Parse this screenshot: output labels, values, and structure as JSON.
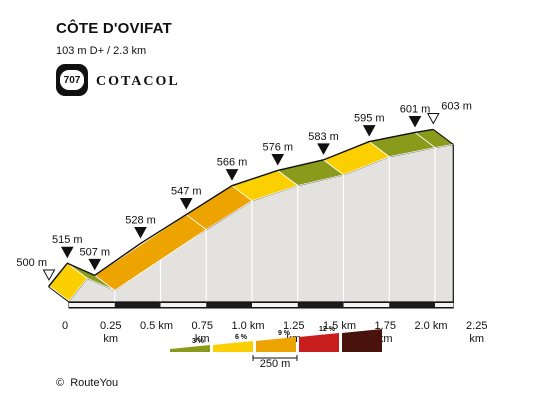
{
  "title": "CÔTE D'OVIFAT",
  "subtitle": "103 m D+ / 2.3 km",
  "logo": {
    "number": "707",
    "word": "COTACOL"
  },
  "copyright": "RouteYou",
  "copyright_symbol": "©",
  "chart_data": {
    "type": "area",
    "title": "CÔTE D'OVIFAT",
    "subtitle": "103 m D+ / 2.3 km",
    "x_unit": "km",
    "x_range": [
      0,
      2.3
    ],
    "grid": false,
    "points": [
      {
        "km": 0.0,
        "elev": 500,
        "label": "500 m",
        "marker": "open"
      },
      {
        "km": 0.1,
        "elev": 515,
        "label": "515 m",
        "marker": "filled"
      },
      {
        "km": 0.25,
        "elev": 507,
        "label": "507 m",
        "marker": "filled"
      },
      {
        "km": 0.5,
        "elev": 528,
        "label": "528 m",
        "marker": "filled"
      },
      {
        "km": 0.75,
        "elev": 547,
        "label": "547 m",
        "marker": "filled"
      },
      {
        "km": 1.0,
        "elev": 566,
        "label": "566 m",
        "marker": "filled"
      },
      {
        "km": 1.25,
        "elev": 576,
        "label": "576 m",
        "marker": "filled"
      },
      {
        "km": 1.5,
        "elev": 583,
        "label": "583 m",
        "marker": "filled"
      },
      {
        "km": 1.75,
        "elev": 595,
        "label": "595 m",
        "marker": "filled"
      },
      {
        "km": 2.0,
        "elev": 601,
        "label": "601 m",
        "marker": "filled"
      },
      {
        "km": 2.1,
        "elev": 603,
        "label": "603 m",
        "marker": "open"
      }
    ],
    "segments": [
      {
        "from_km": 0.0,
        "to_km": 0.1,
        "color": "#fcd000"
      },
      {
        "from_km": 0.1,
        "to_km": 0.25,
        "color": "#8a9a1a"
      },
      {
        "from_km": 0.25,
        "to_km": 0.75,
        "color": "#eea400"
      },
      {
        "from_km": 0.75,
        "to_km": 1.0,
        "color": "#eea400"
      },
      {
        "from_km": 1.0,
        "to_km": 1.25,
        "color": "#fcd000"
      },
      {
        "from_km": 1.25,
        "to_km": 1.5,
        "color": "#8a9a1a"
      },
      {
        "from_km": 1.5,
        "to_km": 1.75,
        "color": "#fcd000"
      },
      {
        "from_km": 1.75,
        "to_km": 2.0,
        "color": "#8a9a1a"
      },
      {
        "from_km": 2.0,
        "to_km": 2.1,
        "color": "#8a9a1a"
      }
    ],
    "ticks": [
      {
        "km": 0.0,
        "label": [
          "0"
        ]
      },
      {
        "km": 0.25,
        "label": [
          "0.25",
          "km"
        ]
      },
      {
        "km": 0.5,
        "label": [
          "0.5 km"
        ]
      },
      {
        "km": 0.75,
        "label": [
          "0.75",
          "km"
        ]
      },
      {
        "km": 1.0,
        "label": [
          "1.0 km"
        ]
      },
      {
        "km": 1.25,
        "label": [
          "1.25",
          "km"
        ]
      },
      {
        "km": 1.5,
        "label": [
          "1.5 km"
        ]
      },
      {
        "km": 1.75,
        "label": [
          "1.75",
          "km"
        ]
      },
      {
        "km": 2.0,
        "label": [
          "2.0 km"
        ]
      },
      {
        "km": 2.25,
        "label": [
          "2.25",
          "km"
        ]
      }
    ],
    "legend": {
      "items": [
        {
          "label": "3 %",
          "color": "#8a9a1a"
        },
        {
          "label": "6 %",
          "color": "#fcd000"
        },
        {
          "label": "9 %",
          "color": "#eea400"
        },
        {
          "label": "12 %",
          "color": "#c81e1e"
        },
        {
          "label": "",
          "color": "#4a120c"
        }
      ],
      "scale_label": "250 m",
      "placement": "bottom-center"
    },
    "colors": {
      "side": "#e4e2df",
      "base_light": "#f2f2f2",
      "base_dark": "#1b1b1b",
      "outline": "#111111"
    }
  }
}
